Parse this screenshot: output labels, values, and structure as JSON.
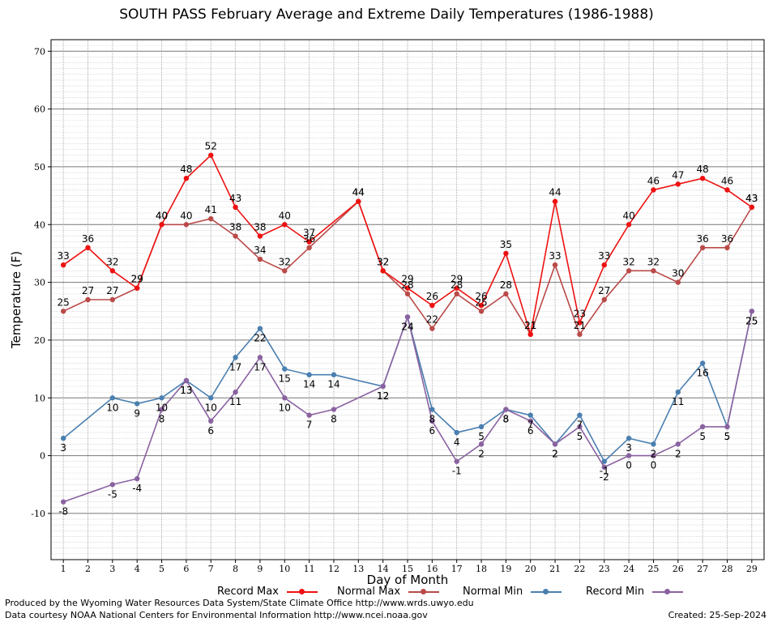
{
  "chart_data": {
    "type": "line",
    "title": "SOUTH PASS February Average and Extreme Daily Temperatures (1986-1988)",
    "xlabel": "Day of Month",
    "ylabel": "Temperature (F)",
    "ylim": [
      -18,
      72
    ],
    "yticks": [
      "-10",
      "0",
      "10",
      "20",
      "30",
      "40",
      "50",
      "60",
      "70"
    ],
    "x": [
      "1",
      "2",
      "3",
      "4",
      "5",
      "6",
      "7",
      "8",
      "9",
      "10",
      "11",
      "12",
      "13",
      "14",
      "15",
      "16",
      "17",
      "18",
      "19",
      "20",
      "21",
      "22",
      "23",
      "24",
      "25",
      "26",
      "27",
      "28",
      "29"
    ],
    "grid": true,
    "legend_position": "bottom",
    "series": [
      {
        "name": "Record Max",
        "color": "#ee1111",
        "labels": true,
        "values": [
          33,
          36,
          32,
          29,
          40,
          48,
          52,
          43,
          38,
          40,
          37,
          null,
          44,
          32,
          29,
          26,
          29,
          26,
          35,
          21,
          44,
          23,
          33,
          40,
          46,
          47,
          48,
          46,
          43
        ]
      },
      {
        "name": "Normal Max",
        "color": "#b94a48",
        "labels": true,
        "values": [
          25,
          27,
          27,
          29,
          40,
          40,
          41,
          38,
          34,
          32,
          36,
          null,
          44,
          32,
          28,
          22,
          28,
          25,
          28,
          21,
          33,
          21,
          27,
          32,
          32,
          30,
          36,
          36,
          43
        ]
      },
      {
        "name": "Normal Min",
        "color": "#4a7fb0",
        "labels": true,
        "values": [
          3,
          null,
          10,
          9,
          10,
          13,
          10,
          17,
          22,
          15,
          14,
          14,
          null,
          12,
          24,
          8,
          4,
          5,
          8,
          7,
          2,
          7,
          -1,
          3,
          2,
          11,
          16,
          5,
          25
        ]
      },
      {
        "name": "Record Min",
        "color": "#8a62a0",
        "labels": true,
        "values": [
          -8,
          null,
          -5,
          -4,
          8,
          13,
          6,
          11,
          17,
          10,
          7,
          8,
          null,
          12,
          24,
          6,
          -1,
          2,
          8,
          6,
          2,
          5,
          -2,
          0,
          0,
          2,
          5,
          5,
          25
        ]
      }
    ]
  },
  "footer": {
    "producer": "Produced by the Wyoming Water Resources Data System/State Climate Office http://www.wrds.uwyo.edu",
    "courtesy": "Data courtesy NOAA National Centers for Environmental Information http://www.ncei.noaa.gov",
    "created": "Created:  25-Sep-2024"
  }
}
